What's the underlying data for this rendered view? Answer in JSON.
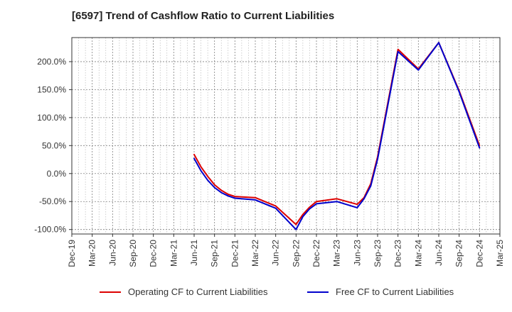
{
  "chart_data": {
    "type": "line",
    "title": "[6597]  Trend of Cashflow Ratio to Current Liabilities",
    "xlabel": "",
    "ylabel": "",
    "x_tick_labels": [
      "Dec-19",
      "Mar-20",
      "Jun-20",
      "Sep-20",
      "Dec-20",
      "Mar-21",
      "Jun-21",
      "Sep-21",
      "Dec-21",
      "Mar-22",
      "Jun-22",
      "Sep-22",
      "Dec-22",
      "Mar-23",
      "Jun-23",
      "Sep-23",
      "Dec-23",
      "Mar-24",
      "Jun-24",
      "Sep-24",
      "Dec-24",
      "Mar-25"
    ],
    "y_ticks": [
      -100,
      -50,
      0,
      50,
      100,
      150,
      200
    ],
    "y_tick_labels": [
      "-100.0%",
      "-50.0%",
      "0.0%",
      "50.0%",
      "100.0%",
      "150.0%",
      "200.0%"
    ],
    "ylim": [
      -108,
      243
    ],
    "grid": true,
    "legend_position": "bottom",
    "series": [
      {
        "name": "Operating CF to Current Liabilities",
        "color": "#dd0000",
        "x": [
          "Jun-21",
          "Jul-21",
          "Aug-21",
          "Sep-21",
          "Oct-21",
          "Nov-21",
          "Dec-21",
          "Mar-22",
          "Jun-22",
          "Sep-22",
          "Oct-22",
          "Nov-22",
          "Dec-22",
          "Mar-23",
          "Jun-23",
          "Jul-23",
          "Aug-23",
          "Sep-23",
          "Dec-23",
          "Mar-24",
          "Jun-24",
          "Sep-24",
          "Dec-24"
        ],
        "values": [
          34,
          12,
          -5,
          -20,
          -30,
          -37,
          -41,
          -43,
          -58,
          -91,
          -73,
          -60,
          -50,
          -45,
          -55,
          -43,
          -18,
          30,
          222,
          187,
          234,
          148,
          50
        ]
      },
      {
        "name": "Free CF to Current Liabilities",
        "color": "#0000cc",
        "x": [
          "Jun-21",
          "Jul-21",
          "Aug-21",
          "Sep-21",
          "Oct-21",
          "Nov-21",
          "Dec-21",
          "Mar-22",
          "Jun-22",
          "Sep-22",
          "Oct-22",
          "Nov-22",
          "Dec-22",
          "Mar-23",
          "Jun-23",
          "Jul-23",
          "Aug-23",
          "Sep-23",
          "Dec-23",
          "Mar-24",
          "Jun-24",
          "Sep-24",
          "Dec-24"
        ],
        "values": [
          27,
          5,
          -12,
          -25,
          -34,
          -40,
          -44,
          -47,
          -62,
          -100,
          -77,
          -63,
          -54,
          -50,
          -61,
          -45,
          -22,
          26,
          218,
          185,
          234,
          146,
          46
        ]
      }
    ]
  }
}
